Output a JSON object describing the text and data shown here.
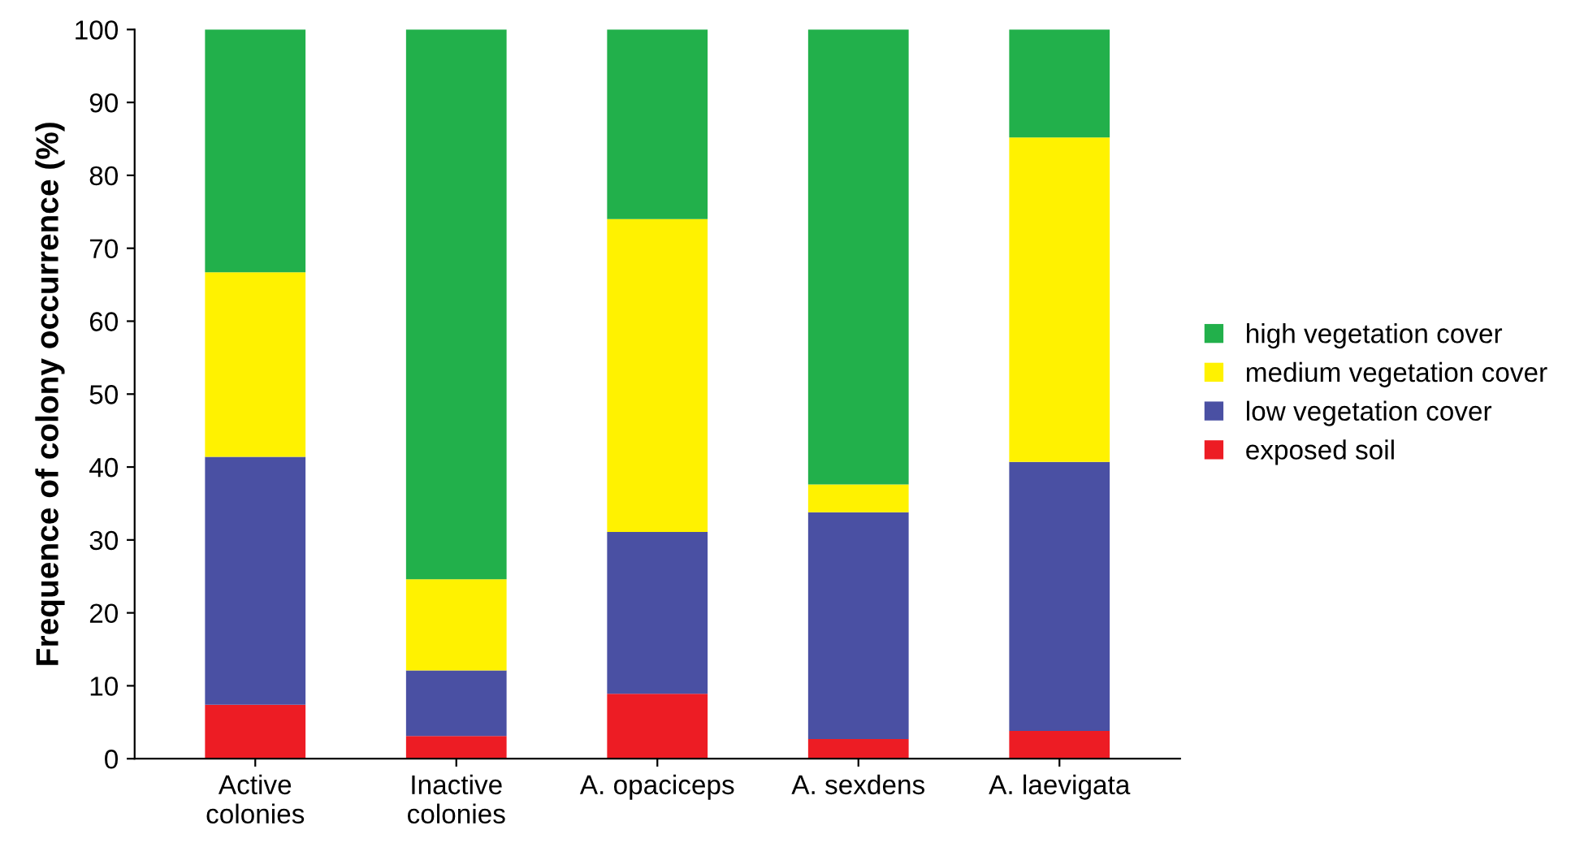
{
  "chart_data": {
    "type": "bar",
    "stacked": true,
    "ylabel": "Frequence of colony occurrence (%)",
    "categories": [
      "Active\ncolonies",
      "Inactive\ncolonies",
      "A. opaciceps",
      "A. sexdens",
      "A. laevigata"
    ],
    "series": [
      {
        "name": "exposed soil",
        "color": "#ed1c24",
        "values": [
          7.4,
          3.1,
          8.9,
          2.7,
          3.8
        ]
      },
      {
        "name": "low vegetation cover",
        "color": "#4a50a3",
        "values": [
          34.0,
          9.0,
          22.2,
          31.1,
          36.9
        ]
      },
      {
        "name": "medium vegetation cover",
        "color": "#fff200",
        "values": [
          25.3,
          12.5,
          42.9,
          3.8,
          44.5
        ]
      },
      {
        "name": "high vegetation cover",
        "color": "#22b04b",
        "values": [
          33.3,
          75.4,
          26.0,
          62.4,
          14.8
        ]
      }
    ],
    "ylim": [
      0,
      100
    ],
    "yticks": [
      0,
      10,
      20,
      30,
      40,
      50,
      60,
      70,
      80,
      90,
      100
    ],
    "grid": false,
    "legend": "right"
  }
}
